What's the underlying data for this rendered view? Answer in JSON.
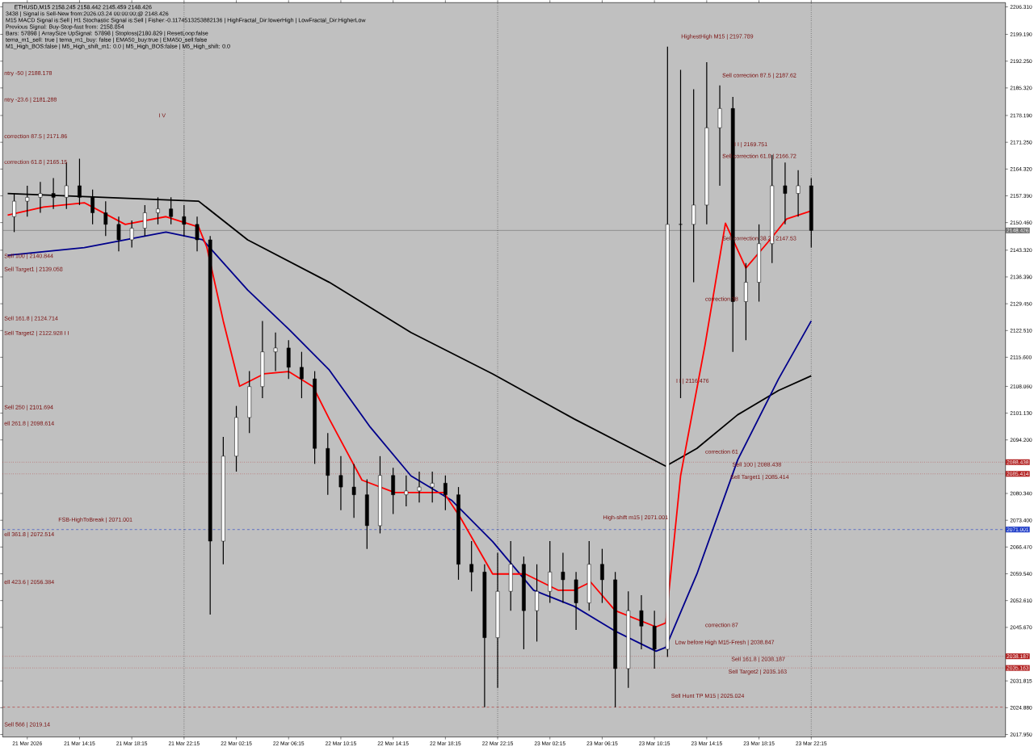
{
  "chart_data": {
    "type": "candlestick",
    "title": "ETHUSD,M15  2158.245 2158.442 2145.459 2148.426",
    "x": [
      "2026-03-21T09:15",
      "2026-03-21T10:15",
      "2026-03-21T11:15",
      "2026-03-21T12:15",
      "2026-03-21T13:15",
      "2026-03-21T14:15",
      "2026-03-21T15:15",
      "2026-03-21T16:15",
      "2026-03-21T17:15",
      "2026-03-21T18:15",
      "2026-03-21T19:15",
      "2026-03-21T20:15",
      "2026-03-21T21:15",
      "2026-03-21T22:15",
      "2026-03-21T23:15",
      "2026-03-22T00:15",
      "2026-03-22T01:15",
      "2026-03-22T02:15",
      "2026-03-22T03:15",
      "2026-03-22T04:15",
      "2026-03-22T05:15",
      "2026-03-22T06:15",
      "2026-03-22T07:15",
      "2026-03-22T08:15",
      "2026-03-22T09:15",
      "2026-03-22T10:15",
      "2026-03-22T11:15",
      "2026-03-22T12:15",
      "2026-03-22T13:15",
      "2026-03-22T14:15",
      "2026-03-22T15:15",
      "2026-03-22T16:15",
      "2026-03-22T17:15",
      "2026-03-22T18:15",
      "2026-03-22T19:15",
      "2026-03-22T20:15",
      "2026-03-22T21:15",
      "2026-03-22T22:15",
      "2026-03-22T23:15",
      "2026-03-23T00:15",
      "2026-03-23T01:15",
      "2026-03-23T02:15",
      "2026-03-23T03:15",
      "2026-03-23T04:15",
      "2026-03-23T05:15",
      "2026-03-23T06:15",
      "2026-03-23T07:15",
      "2026-03-23T08:15",
      "2026-03-23T09:15",
      "2026-03-23T10:15",
      "2026-03-23T11:15",
      "2026-03-23T12:15",
      "2026-03-23T13:15",
      "2026-03-23T14:15",
      "2026-03-23T15:15",
      "2026-03-23T16:15",
      "2026-03-23T17:15",
      "2026-03-23T18:15",
      "2026-03-23T19:15",
      "2026-03-23T20:15",
      "2026-03-23T21:15",
      "2026-03-23T22:15"
    ],
    "ohlc": [
      [
        2152,
        2158,
        2148,
        2156
      ],
      [
        2156,
        2160,
        2152,
        2157
      ],
      [
        2157,
        2161,
        2153,
        2158
      ],
      [
        2158,
        2162,
        2154,
        2157
      ],
      [
        2157,
        2166,
        2154,
        2160
      ],
      [
        2160,
        2167,
        2155,
        2157
      ],
      [
        2157,
        2159,
        2150,
        2153
      ],
      [
        2153,
        2156,
        2147,
        2150
      ],
      [
        2150,
        2152,
        2143,
        2146
      ],
      [
        2146,
        2151,
        2144,
        2149
      ],
      [
        2149,
        2155,
        2147,
        2153
      ],
      [
        2153,
        2157,
        2150,
        2154
      ],
      [
        2154,
        2157,
        2150,
        2152
      ],
      [
        2152,
        2155,
        2147,
        2150
      ],
      [
        2150,
        2152,
        2143,
        2146
      ],
      [
        2146,
        2147,
        2049,
        2068
      ],
      [
        2068,
        2095,
        2062,
        2090
      ],
      [
        2090,
        2103,
        2086,
        2100
      ],
      [
        2100,
        2112,
        2096,
        2108
      ],
      [
        2108,
        2125,
        2105,
        2117
      ],
      [
        2117,
        2122,
        2112,
        2118
      ],
      [
        2118,
        2120,
        2110,
        2113
      ],
      [
        2113,
        2117,
        2105,
        2110
      ],
      [
        2110,
        2112,
        2088,
        2092
      ],
      [
        2092,
        2096,
        2080,
        2085
      ],
      [
        2085,
        2090,
        2076,
        2082
      ],
      [
        2082,
        2088,
        2074,
        2080
      ],
      [
        2080,
        2084,
        2066,
        2072
      ],
      [
        2072,
        2090,
        2070,
        2085
      ],
      [
        2085,
        2087,
        2075,
        2080
      ],
      [
        2080,
        2085,
        2077,
        2081
      ],
      [
        2081,
        2086,
        2078,
        2082
      ],
      [
        2082,
        2086,
        2078,
        2083
      ],
      [
        2083,
        2085,
        2076,
        2080
      ],
      [
        2080,
        2082,
        2058,
        2062
      ],
      [
        2062,
        2068,
        2055,
        2060
      ],
      [
        2060,
        2062,
        2025,
        2043
      ],
      [
        2043,
        2065,
        2030,
        2055
      ],
      [
        2055,
        2068,
        2050,
        2062
      ],
      [
        2062,
        2064,
        2040,
        2050
      ],
      [
        2050,
        2062,
        2042,
        2055
      ],
      [
        2055,
        2068,
        2052,
        2060
      ],
      [
        2060,
        2065,
        2052,
        2058
      ],
      [
        2058,
        2060,
        2045,
        2052
      ],
      [
        2052,
        2068,
        2050,
        2062
      ],
      [
        2062,
        2066,
        2052,
        2058
      ],
      [
        2058,
        2060,
        2025,
        2035
      ],
      [
        2035,
        2055,
        2030,
        2050
      ],
      [
        2050,
        2054,
        2040,
        2046
      ],
      [
        2046,
        2050,
        2035,
        2040
      ],
      [
        2040,
        2196,
        2038,
        2150
      ],
      [
        2150,
        2190,
        2105,
        2150
      ],
      [
        2150,
        2185,
        2135,
        2155
      ],
      [
        2155,
        2192,
        2150,
        2175
      ],
      [
        2175,
        2186,
        2160,
        2180
      ],
      [
        2180,
        2183,
        2117,
        2130
      ],
      [
        2130,
        2140,
        2120,
        2135
      ],
      [
        2135,
        2150,
        2130,
        2145
      ],
      [
        2145,
        2168,
        2140,
        2160
      ],
      [
        2160,
        2166,
        2150,
        2158
      ],
      [
        2158,
        2164,
        2152,
        2160
      ],
      [
        2160,
        2162,
        2144,
        2148.426
      ]
    ],
    "series": [
      {
        "type": "line",
        "color": "#000000",
        "x": [
          "2026-03-21T08:45",
          "2026-03-21T23:22",
          "2026-03-22T03:07",
          "2026-03-22T09:22",
          "2026-03-22T15:37",
          "2026-03-22T21:52",
          "2026-03-23T04:07",
          "2026-03-23T10:22",
          "2026-03-23T11:07",
          "2026-03-23T13:30",
          "2026-03-23T16:37",
          "2026-03-23T19:45",
          "2026-03-23T22:15"
        ],
        "values": [
          2158,
          2156,
          2146,
          2135,
          2122,
          2111.3,
          2099.6,
          2088.7,
          2087.4,
          2092,
          2100.7,
          2107,
          2110.8
        ]
      },
      {
        "type": "line",
        "color": "#00008b",
        "x": [
          "2026-03-21T08:45",
          "2026-03-21T14:37",
          "2026-03-21T20:52",
          "2026-03-21T23:41",
          "2026-03-22T03:07",
          "2026-03-22T06:15",
          "2026-03-22T09:22",
          "2026-03-22T12:30",
          "2026-03-22T15:37",
          "2026-03-22T18:45",
          "2026-03-22T21:52",
          "2026-03-23T01:00",
          "2026-03-23T04:07",
          "2026-03-23T07:15",
          "2026-03-23T10:22",
          "2026-03-23T11:07",
          "2026-03-23T13:30",
          "2026-03-23T16:37",
          "2026-03-23T19:45",
          "2026-03-23T22:15"
        ],
        "values": [
          2142,
          2144,
          2148,
          2146,
          2133,
          2122.9,
          2112.3,
          2097.5,
          2084.9,
          2078.5,
          2067.9,
          2055.3,
          2051.1,
          2044.7,
          2039.5,
          2040.5,
          2059.5,
          2089,
          2110,
          2125
        ]
      },
      {
        "type": "line",
        "color": "#ff0000",
        "x": [
          "2026-03-21T08:45",
          "2026-03-21T11:30",
          "2026-03-21T14:37",
          "2026-03-21T17:45",
          "2026-03-21T20:52",
          "2026-03-21T23:22",
          "2026-03-22T00:00",
          "2026-03-22T01:15",
          "2026-03-22T02:30",
          "2026-03-22T04:22",
          "2026-03-22T06:15",
          "2026-03-22T08:07",
          "2026-03-22T09:22",
          "2026-03-22T11:52",
          "2026-03-22T14:22",
          "2026-03-22T18:07",
          "2026-03-22T19:22",
          "2026-03-22T21:52",
          "2026-03-23T00:22",
          "2026-03-23T02:52",
          "2026-03-23T04:07",
          "2026-03-23T05:22",
          "2026-03-23T07:15",
          "2026-03-23T10:22",
          "2026-03-23T11:07",
          "2026-03-23T12:15",
          "2026-03-23T14:07",
          "2026-03-23T15:41",
          "2026-03-23T17:15",
          "2026-03-23T19:07",
          "2026-03-23T20:22",
          "2026-03-23T22:15"
        ],
        "values": [
          2152.4,
          2154.5,
          2155.6,
          2150,
          2152,
          2149.3,
          2144,
          2125,
          2108.1,
          2111.3,
          2111.9,
          2108,
          2099.6,
          2083.8,
          2080.6,
          2080.6,
          2074.3,
          2059.5,
          2059.5,
          2055.3,
          2055.3,
          2057.4,
          2050,
          2045.8,
          2046.8,
          2084.9,
          2118.7,
          2150.3,
          2138.7,
          2146.1,
          2151.4,
          2153.5
        ]
      }
    ],
    "xlim": [
      "2026-03-21T08:22",
      "2026-03-24T13:07"
    ],
    "xticks": [
      {
        "value": "2026-03-21T10:15",
        "label": "21 Mar 2026"
      },
      {
        "value": "2026-03-21T14:15",
        "label": "21 Mar 14:15"
      },
      {
        "value": "2026-03-21T18:15",
        "label": "21 Mar 18:15"
      },
      {
        "value": "2026-03-21T22:15",
        "label": "21 Mar 22:15"
      },
      {
        "value": "2026-03-22T02:15",
        "label": "22 Mar 02:15"
      },
      {
        "value": "2026-03-22T06:15",
        "label": "22 Mar 06:15"
      },
      {
        "value": "2026-03-22T10:15",
        "label": "22 Mar 10:15"
      },
      {
        "value": "2026-03-22T14:15",
        "label": "22 Mar 14:15"
      },
      {
        "value": "2026-03-22T18:15",
        "label": "22 Mar 18:15"
      },
      {
        "value": "2026-03-22T22:15",
        "label": "22 Mar 22:15"
      },
      {
        "value": "2026-03-23T02:15",
        "label": "23 Mar 02:15"
      },
      {
        "value": "2026-03-23T06:15",
        "label": "23 Mar 06:15"
      },
      {
        "value": "2026-03-23T10:15",
        "label": "23 Mar 10:15"
      },
      {
        "value": "2026-03-23T14:15",
        "label": "23 Mar 14:15"
      },
      {
        "value": "2026-03-23T18:15",
        "label": "23 Mar 18:15"
      },
      {
        "value": "2026-03-23T22:15",
        "label": "23 Mar 22:15"
      }
    ],
    "ylim": [
      2017.3,
      2207.4
    ],
    "yticks": [
      {
        "value": 2017.95,
        "label": "2017.950"
      },
      {
        "value": 2024.88,
        "label": "2024.880"
      },
      {
        "value": 2031.815,
        "label": "2031.815"
      },
      {
        "value": 2045.67,
        "label": "2045.670"
      },
      {
        "value": 2052.61,
        "label": "2052.610"
      },
      {
        "value": 2059.54,
        "label": "2059.540"
      },
      {
        "value": 2066.47,
        "label": "2066.470"
      },
      {
        "value": 2073.4,
        "label": "2073.400"
      },
      {
        "value": 2080.34,
        "label": "2080.340"
      },
      {
        "value": 2094.2,
        "label": "2094.200"
      },
      {
        "value": 2101.13,
        "label": "2101.130"
      },
      {
        "value": 2108.06,
        "label": "2108.060"
      },
      {
        "value": 2115.6,
        "label": "2115.600"
      },
      {
        "value": 2122.51,
        "label": "2122.510"
      },
      {
        "value": 2129.45,
        "label": "2129.450"
      },
      {
        "value": 2136.39,
        "label": "2136.390"
      },
      {
        "value": 2143.32,
        "label": "2143.320"
      },
      {
        "value": 2150.46,
        "label": "2150.460"
      },
      {
        "value": 2157.39,
        "label": "2157.390"
      },
      {
        "value": 2164.32,
        "label": "2164.320"
      },
      {
        "value": 2171.25,
        "label": "2171.250"
      },
      {
        "value": 2178.19,
        "label": "2178.190"
      },
      {
        "value": 2185.32,
        "label": "2185.320"
      },
      {
        "value": 2192.25,
        "label": "2192.250"
      },
      {
        "value": 2199.19,
        "label": "2199.190"
      },
      {
        "value": 2206.31,
        "label": "2206.310"
      }
    ],
    "ref_lines": [
      {
        "axis": "y",
        "value": 2088.438,
        "label": "2088.438",
        "color": "#b22222",
        "line_style": "dotted"
      },
      {
        "axis": "y",
        "value": 2085.414,
        "label": "2085.414",
        "color": "#b22222",
        "line_style": "dotted"
      },
      {
        "axis": "y",
        "value": 2071.001,
        "label": "2071.001",
        "color": "#1e3cc8",
        "line_style": "dashed"
      },
      {
        "axis": "y",
        "value": 2038.187,
        "label": "2038.187",
        "color": "#b22222",
        "line_style": "dotted"
      },
      {
        "axis": "y",
        "value": 2035.163,
        "label": "2035.163",
        "color": "#b22222",
        "line_style": "dotted"
      },
      {
        "axis": "y",
        "value": 2025.024,
        "color": "#b22222",
        "line_style": "dashed"
      },
      {
        "axis": "y",
        "value": 2148.426,
        "label": "2148.426",
        "color": "#707070",
        "line_style": "solid"
      },
      {
        "axis": "x",
        "value": "2026-03-21T22:15",
        "color": "#000000",
        "line_style": "dotted"
      },
      {
        "axis": "x",
        "value": "2026-03-22T22:15",
        "color": "#000000",
        "line_style": "dotted"
      },
      {
        "axis": "x",
        "value": "2026-03-23T22:15",
        "color": "#000000",
        "line_style": "dotted"
      }
    ],
    "annotations": [
      "3438 | Signal is Sell-New from:2026.03.24 00:00:00;@ 2148.426",
      "M15 MACD Signal is:Sell | H1 Stochastic Signal is:Sell | Fisher:-0.1174513253882136 | HighFractal_Dir:lowerHigh | LowFractal_Dir:HigherLow",
      "Previous Signal: Buy-Stop-fast from: 2158.854",
      "Bars: 57898 | ArraySize UpSignal: 57898 | Stoploss|2180.829 | ResetLoop:false",
      "tema_m1_sell: true | tema_m1_buy: false | EMA50_buy:true | EMA50_sell:false",
      "M1_High_BOS:false | M5_High_shift_m1: 0.0 | M5_High_BOS:false | M5_High_shift: 0.0",
      "ntry -50 | 2188.178",
      "ntry -23.6 | 2181.288",
      "correction 87.5 | 2171.86",
      "correction 61.8 | 2165.15",
      "Sell 100 | 2140.844",
      "Sell Target1 | 2139.058",
      "Sell 161.8 | 2124.714",
      "Sell Target2 | 2122.928 I I",
      "Sell 250 | 2101.694",
      "ell 261.8 | 2098.614",
      "ell 361.8 | 2072.514",
      "FSB-HighToBreak | 2071.001",
      "ell 423.6 | 2056.384",
      "Sell 566 | 2019.14",
      "I V",
      "HighestHigh   M15 | 2197.789",
      "I I | 2169.751",
      "Sell correction 87.5 | 2187.62",
      "Sell correction 61.8 | 2166.72",
      "Sell correction 38.2 | 2147.53",
      "correction 38",
      "I I | 2116.476",
      "correction 61",
      "Sell 100 | 2088.438",
      "Sell Target1 | 2085.414",
      "High-shift m15 | 2071.001",
      "correction 87",
      "Low before High   M15-Fresh | 2038.847",
      "Sell 161.8 | 2038.187",
      "Sell Target2 | 2035.163",
      "Sell Hunt TP M15 | 2025.024"
    ]
  }
}
